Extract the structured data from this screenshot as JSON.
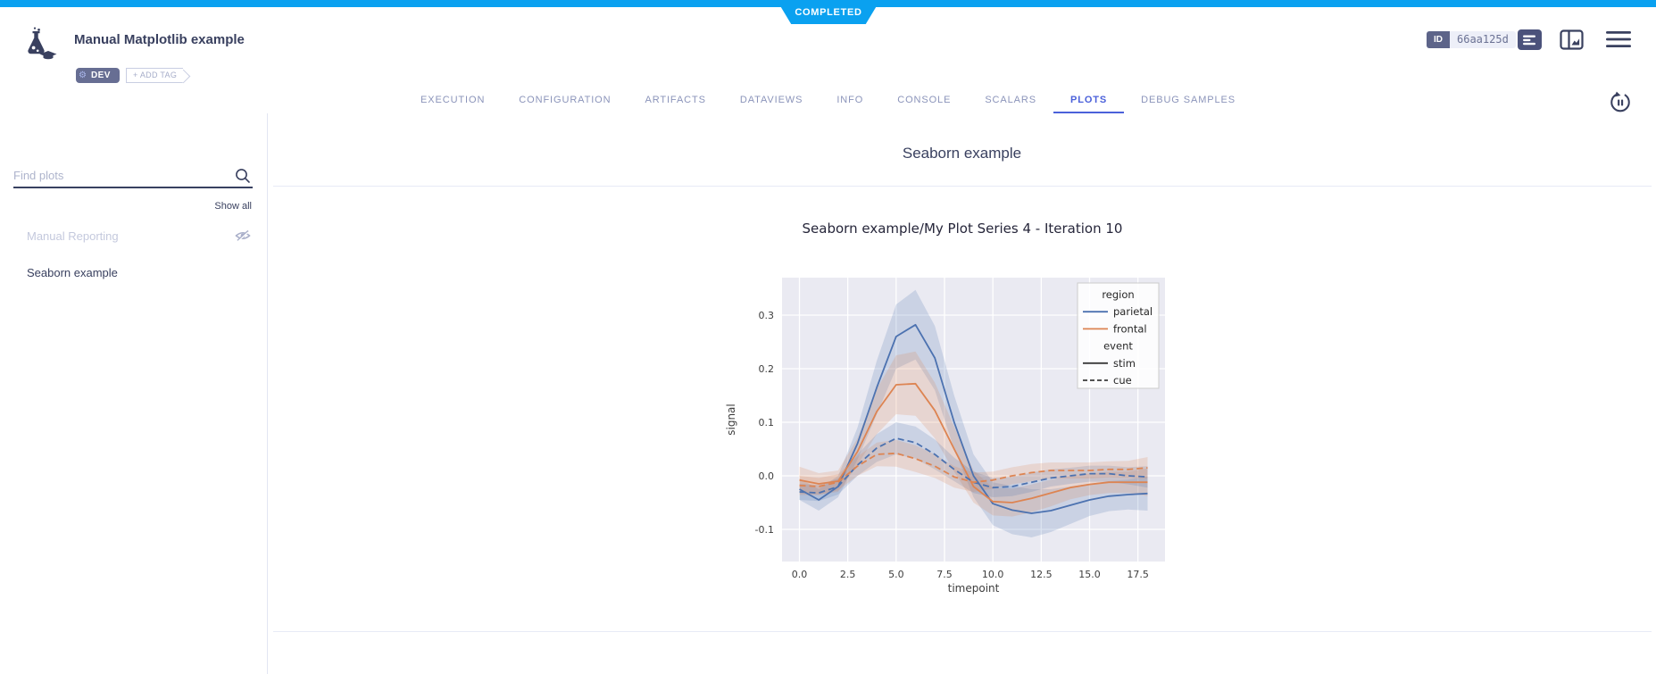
{
  "status_banner": {
    "label": "COMPLETED",
    "color": "#0aa1f0"
  },
  "header": {
    "title": "Manual Matplotlib example",
    "tags": {
      "dev_label": "DEV",
      "add_tag_label": "+ ADD TAG"
    },
    "id_chip": {
      "label": "ID",
      "value": "66aa125d"
    }
  },
  "tabs": {
    "items": [
      "EXECUTION",
      "CONFIGURATION",
      "ARTIFACTS",
      "DATAVIEWS",
      "INFO",
      "CONSOLE",
      "SCALARS",
      "PLOTS",
      "DEBUG SAMPLES"
    ],
    "active": "PLOTS"
  },
  "sidebar": {
    "search_placeholder": "Find plots",
    "show_all_label": "Show all",
    "items": [
      {
        "label": "Manual Reporting",
        "hidden": true
      },
      {
        "label": "Seaborn example",
        "hidden": false
      }
    ]
  },
  "main": {
    "section_title": "Seaborn example",
    "plot_title": "Seaborn example/My Plot Series 4 - Iteration 10"
  },
  "chart_data": {
    "type": "line",
    "title": "Seaborn example/My Plot Series 4 - Iteration 10",
    "xlabel": "timepoint",
    "ylabel": "signal",
    "xlim": [
      -0.9,
      18.9
    ],
    "ylim": [
      -0.16,
      0.37
    ],
    "x_ticks": [
      0,
      2.5,
      5,
      7.5,
      10,
      12.5,
      15,
      17.5
    ],
    "y_ticks": [
      -0.1,
      0,
      0.1,
      0.2,
      0.3
    ],
    "grid": true,
    "plot_bg": "#eaeaf2",
    "grid_color": "#ffffff",
    "x": [
      0,
      1,
      2,
      3,
      4,
      5,
      6,
      7,
      8,
      9,
      10,
      11,
      12,
      13,
      14,
      15,
      16,
      17,
      18
    ],
    "series": [
      {
        "name": "parietal-stim",
        "color": "#4c72b0",
        "dash": false,
        "values": [
          -0.025,
          -0.045,
          -0.02,
          0.06,
          0.165,
          0.26,
          0.282,
          0.22,
          0.1,
          0.0,
          -0.052,
          -0.064,
          -0.07,
          -0.065,
          -0.055,
          -0.045,
          -0.038,
          -0.035,
          -0.033
        ],
        "band": [
          0.02,
          0.02,
          0.02,
          0.03,
          0.05,
          0.06,
          0.065,
          0.06,
          0.05,
          0.04,
          0.04,
          0.045,
          0.045,
          0.04,
          0.035,
          0.03,
          0.028,
          0.028,
          0.032
        ]
      },
      {
        "name": "frontal-stim",
        "color": "#dd8452",
        "dash": false,
        "values": [
          -0.008,
          -0.015,
          -0.01,
          0.045,
          0.12,
          0.17,
          0.172,
          0.122,
          0.05,
          -0.02,
          -0.048,
          -0.05,
          -0.042,
          -0.032,
          -0.022,
          -0.016,
          -0.012,
          -0.012,
          -0.012
        ],
        "band": [
          0.025,
          0.02,
          0.02,
          0.025,
          0.042,
          0.055,
          0.06,
          0.052,
          0.042,
          0.03,
          0.026,
          0.026,
          0.026,
          0.025,
          0.022,
          0.02,
          0.02,
          0.02,
          0.026
        ]
      },
      {
        "name": "parietal-cue",
        "color": "#4c72b0",
        "dash": true,
        "values": [
          -0.03,
          -0.032,
          -0.02,
          0.02,
          0.052,
          0.07,
          0.062,
          0.04,
          0.012,
          -0.012,
          -0.022,
          -0.02,
          -0.012,
          -0.004,
          0.0,
          0.004,
          0.004,
          0.0,
          -0.002
        ],
        "band": [
          0.015,
          0.015,
          0.015,
          0.02,
          0.026,
          0.03,
          0.03,
          0.028,
          0.022,
          0.02,
          0.018,
          0.018,
          0.018,
          0.016,
          0.015,
          0.015,
          0.015,
          0.016,
          0.02
        ]
      },
      {
        "name": "frontal-cue",
        "color": "#dd8452",
        "dash": true,
        "values": [
          -0.018,
          -0.02,
          -0.012,
          0.018,
          0.04,
          0.042,
          0.032,
          0.018,
          -0.002,
          -0.012,
          -0.008,
          0.0,
          0.006,
          0.01,
          0.01,
          0.01,
          0.012,
          0.012,
          0.015
        ],
        "band": [
          0.018,
          0.016,
          0.015,
          0.018,
          0.022,
          0.025,
          0.025,
          0.022,
          0.02,
          0.018,
          0.016,
          0.016,
          0.016,
          0.015,
          0.015,
          0.015,
          0.015,
          0.016,
          0.02
        ]
      }
    ],
    "legend": {
      "position": "upper right",
      "entries": [
        {
          "type": "header",
          "label": "region"
        },
        {
          "type": "line",
          "label": "parietal",
          "color": "#4c72b0",
          "dash": false
        },
        {
          "type": "line",
          "label": "frontal",
          "color": "#dd8452",
          "dash": false
        },
        {
          "type": "header",
          "label": "event"
        },
        {
          "type": "line",
          "label": "stim",
          "color": "#3a3a3a",
          "dash": false
        },
        {
          "type": "line",
          "label": "cue",
          "color": "#3a3a3a",
          "dash": true
        }
      ]
    }
  }
}
